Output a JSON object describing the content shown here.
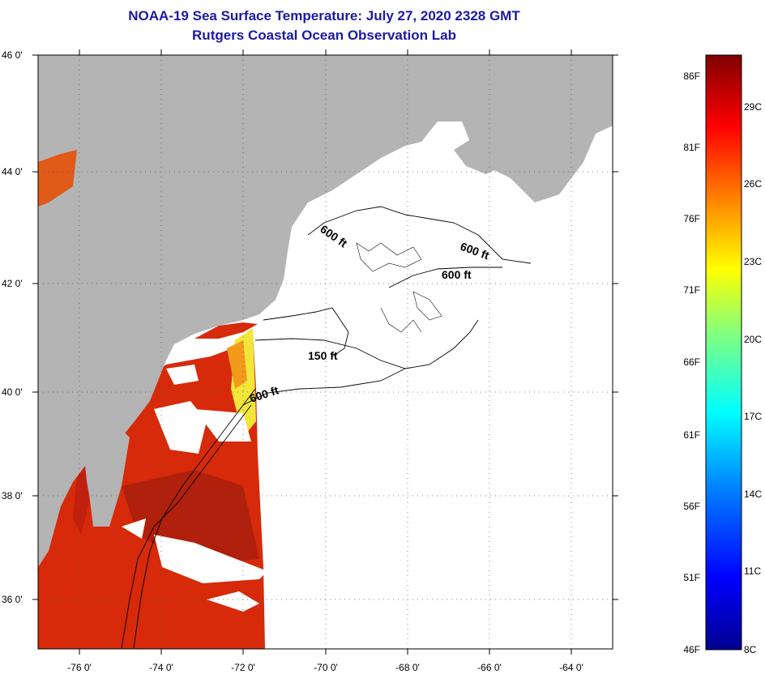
{
  "title": {
    "line1": "NOAA-19 Sea Surface Temperature:  July 27, 2020 2328 GMT",
    "line2": "Rutgers Coastal Ocean Observation Lab"
  },
  "map": {
    "latitude_labels": [
      "46 0'",
      "44 0'",
      "42 0'",
      "40 0'",
      "38 0'",
      "36 0'"
    ],
    "longitude_labels": [
      "-76 0'",
      "-74 0'",
      "-72 0'",
      "-70 0'",
      "-68 0'",
      "-66 0'",
      "-64 0'"
    ],
    "contour_labels": [
      "600 ft",
      "600 ft",
      "600 ft",
      "150 ft",
      "600 ft"
    ],
    "colors": {
      "land": "#b4b4b4",
      "cloud_no_data": "#ffffff",
      "sst_warm": "#d62a0a",
      "sst_dark": "#b0200c",
      "sst_yellow": "#f2e63a"
    }
  },
  "colorbar": {
    "fahrenheit_labels": [
      "86F",
      "81F",
      "76F",
      "71F",
      "66F",
      "61F",
      "56F",
      "51F",
      "46F"
    ],
    "celsius_labels": [
      "29C",
      "26C",
      "23C",
      "20C",
      "17C",
      "14C",
      "11C",
      "8C"
    ]
  }
}
